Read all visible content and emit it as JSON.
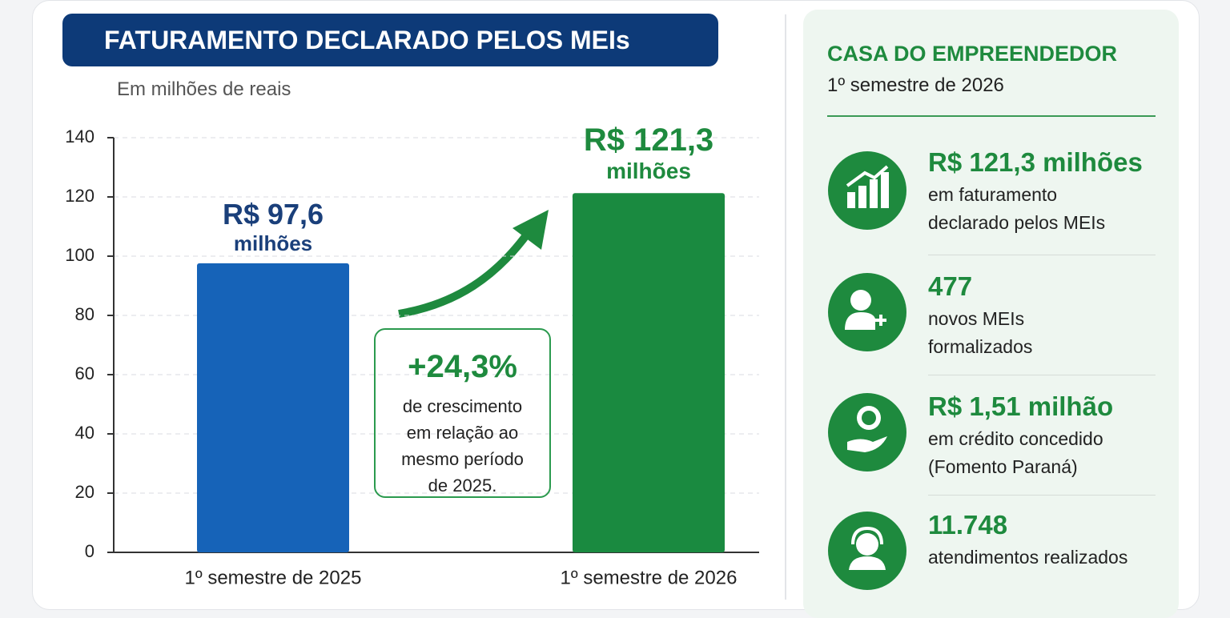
{
  "chart_data": {
    "type": "bar",
    "title": "FATURAMENTO DECLARADO PELOS MEIs",
    "subtitle": "Em milhões de reais",
    "categories": [
      "1º semestre de 2025",
      "1º semestre de 2026"
    ],
    "values": [
      97.6,
      121.3
    ],
    "value_labels": [
      "R$ 97,6 milhões",
      "R$ 121,3 milhões"
    ],
    "colors": [
      "#1663b8",
      "#1a8a40"
    ],
    "ylim": [
      0,
      140
    ],
    "yticks": [
      0,
      20,
      40,
      60,
      80,
      100,
      120,
      140
    ],
    "grid": true,
    "annotation": {
      "value": "+24,3%",
      "text": "de crescimento em relação ao mesmo período de 2025."
    }
  },
  "panel": {
    "title": "CASA DO EMPREENDEDOR",
    "subtitle": "1º semestre de 2026",
    "items": [
      {
        "value": "R$ 121,3 milhões",
        "text": "em faturamento declarado pelos MEIs"
      },
      {
        "value": "477",
        "text": "novos MEIs formalizados"
      },
      {
        "value": "R$ 1,51 milhão",
        "text": "em crédito concedido (Fomento Paraná)"
      },
      {
        "value": "11.748",
        "text": "atendimentos realizados"
      }
    ]
  }
}
